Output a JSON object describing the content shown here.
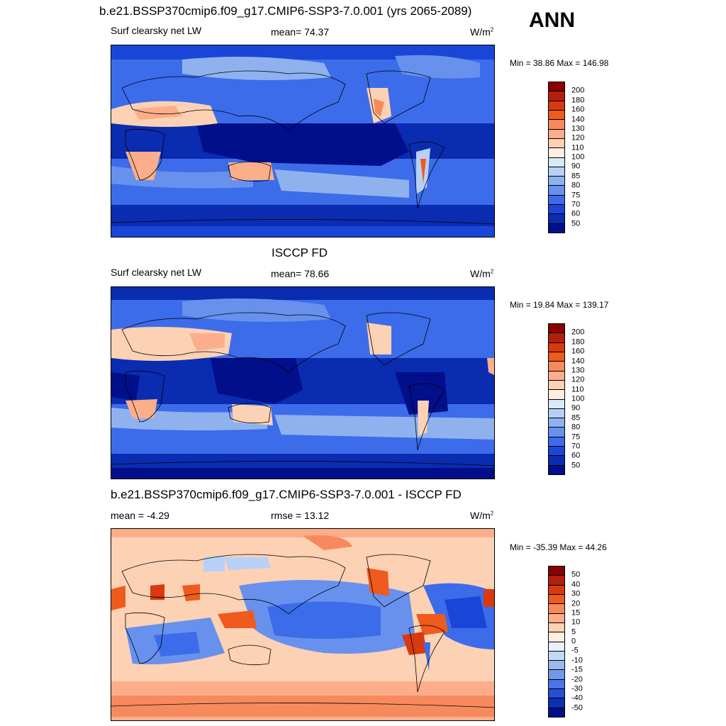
{
  "header": {
    "title": "b.e21.BSSP370cmip6.f09_g17.CMIP6-SSP3-7.0.001 (yrs 2065-2089)",
    "season": "ANN"
  },
  "panels": [
    {
      "title": "",
      "left_label": "Surf clearsky net LW",
      "center_label": "mean=  74.37",
      "units": "W/m",
      "units_sup": "2",
      "minmax": "Min =  38.86 Max = 146.98",
      "colorbar_labels": [
        "200",
        "180",
        "160",
        "140",
        "130",
        "120",
        "110",
        "100",
        "90",
        "85",
        "80",
        "75",
        "70",
        "60",
        "50"
      ]
    },
    {
      "title": "ISCCP FD",
      "left_label": "Surf clearsky net LW",
      "center_label": "mean=  78.66",
      "units": "W/m",
      "units_sup": "2",
      "minmax": "Min =  19.84 Max = 139.17",
      "colorbar_labels": [
        "200",
        "180",
        "160",
        "140",
        "130",
        "120",
        "110",
        "100",
        "90",
        "85",
        "80",
        "75",
        "70",
        "60",
        "50"
      ]
    },
    {
      "title": "b.e21.BSSP370cmip6.f09_g17.CMIP6-SSP3-7.0.001 - ISCCP FD",
      "left_label": "mean =  -4.29",
      "center_label": "rmse =  13.12",
      "units": "W/m",
      "units_sup": "2",
      "minmax": "Min = -35.39 Max =  44.26",
      "colorbar_labels": [
        "50",
        "40",
        "30",
        "20",
        "15",
        "10",
        "5",
        "0",
        "-5",
        "-10",
        "-15",
        "-20",
        "-30",
        "-40",
        "-50"
      ]
    }
  ],
  "colors": {
    "seq": [
      "#8b0000",
      "#b2200c",
      "#d8390f",
      "#ef5a1e",
      "#f78a5c",
      "#fcae8a",
      "#fdd1b4",
      "#fdeee0",
      "#d9e8fa",
      "#b7d0f7",
      "#8fb2ef",
      "#6791ed",
      "#3c6cea",
      "#1a46d8",
      "#0a2cb0",
      "#020f8a"
    ],
    "div": [
      "#8b0000",
      "#b2200c",
      "#d8390f",
      "#ef5a1e",
      "#f78a5c",
      "#fcae8a",
      "#fdd1b4",
      "#fdeee0",
      "#e8f0fb",
      "#c3d7f6",
      "#9ab9ef",
      "#7199ea",
      "#4a75e6",
      "#2450d6",
      "#0d2fb0",
      "#020f8a"
    ]
  }
}
